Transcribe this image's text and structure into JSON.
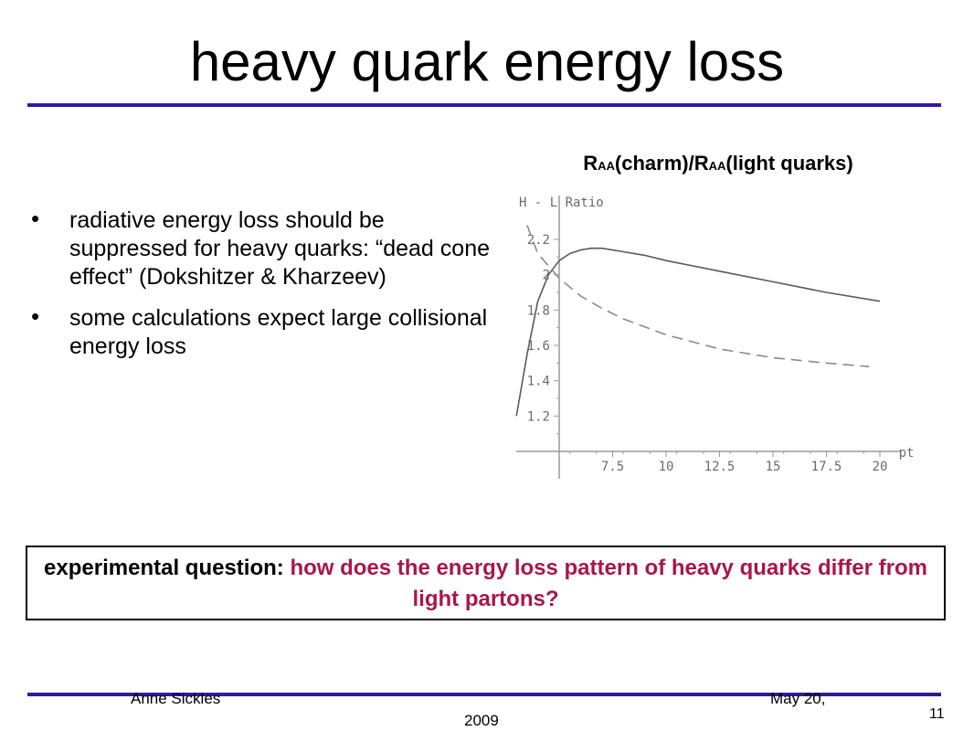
{
  "slide": {
    "title": "heavy quark energy loss",
    "bullets": [
      "radiative energy loss should be suppressed for heavy quarks: “dead cone effect” (Dokshitzer & Kharzeev)",
      "some calculations expect large collisional energy loss"
    ],
    "question": {
      "lead": "experimental question:",
      "highlight": "how does the energy loss pattern of heavy quarks differ from light partons?"
    },
    "footer": {
      "author": "Anne Sickles",
      "date_line1": "May 20,",
      "date_line2": "2009",
      "page": "11"
    },
    "colors": {
      "accent_rule": "#2f1aa5",
      "highlight": "#a8174a"
    }
  },
  "chart_data": {
    "type": "line",
    "title": "RAA(charm)/RAA(light quarks)",
    "title_parts": {
      "r1": "R",
      "s1": "AA",
      "t1": "(charm)/",
      "r2": "R",
      "s2": "AA",
      "t2": "(light quarks)"
    },
    "ylabel": "H - L Ratio",
    "xlabel": "pt",
    "x_ticks": [
      "7.5",
      "10",
      "12.5",
      "15",
      "17.5",
      "20"
    ],
    "y_ticks": [
      "1.2",
      "1.4",
      "1.6",
      "1.8",
      "2",
      "2.2"
    ],
    "xlim": [
      3,
      21
    ],
    "ylim": [
      1.0,
      2.35
    ],
    "series": [
      {
        "style": "solid",
        "x": [
          3.0,
          3.5,
          4.0,
          4.5,
          5.0,
          5.5,
          6.0,
          6.5,
          7.0,
          8.0,
          9.0,
          10.0,
          12.5,
          15.0,
          17.5,
          20.0
        ],
        "y": [
          1.2,
          1.55,
          1.85,
          2.0,
          2.08,
          2.12,
          2.14,
          2.15,
          2.15,
          2.13,
          2.11,
          2.08,
          2.02,
          1.96,
          1.9,
          1.85
        ]
      },
      {
        "style": "dashed",
        "x": [
          3.5,
          4.0,
          5.0,
          6.0,
          7.0,
          8.0,
          10.0,
          12.5,
          15.0,
          17.5,
          19.5
        ],
        "y": [
          2.28,
          2.12,
          1.98,
          1.88,
          1.81,
          1.75,
          1.66,
          1.58,
          1.53,
          1.5,
          1.48
        ]
      }
    ]
  }
}
